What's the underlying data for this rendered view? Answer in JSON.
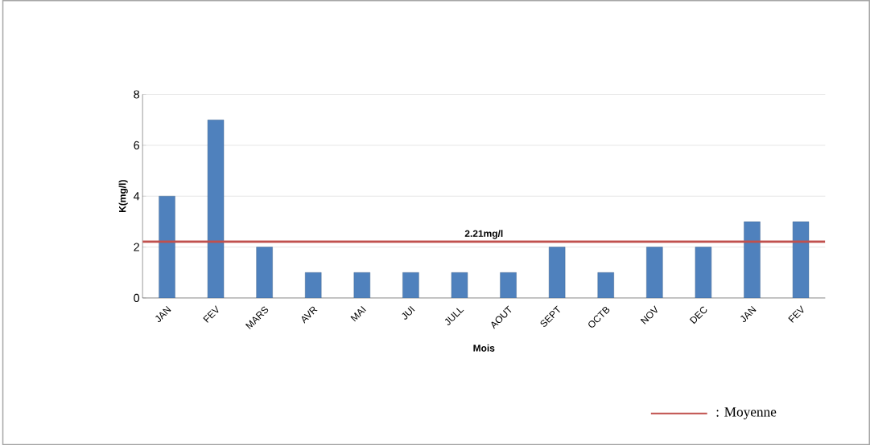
{
  "chart_data": {
    "type": "bar",
    "xlabel": "Mois",
    "ylabel": "K(mg/l)",
    "categories": [
      "JAN",
      "FEV",
      "MARS",
      "AVR",
      "MAI",
      "JUI",
      "JULL",
      "AOUT",
      "SEPT",
      "OCTB",
      "NOV",
      "DEC",
      "JAN",
      "FEV"
    ],
    "values": [
      4,
      7,
      2,
      1,
      1,
      1,
      1,
      1,
      2,
      1,
      2,
      2,
      3,
      3
    ],
    "color": "#4f81bd",
    "ylim": [
      0,
      8
    ],
    "yticks": [
      0,
      2,
      4,
      6,
      8
    ],
    "grid": "y",
    "ref_lines": [
      {
        "axis": "y",
        "value": 2.21,
        "label": "2.21mg/l",
        "color": "#c0504d"
      }
    ],
    "annotations": [
      ": Moyenne"
    ]
  }
}
